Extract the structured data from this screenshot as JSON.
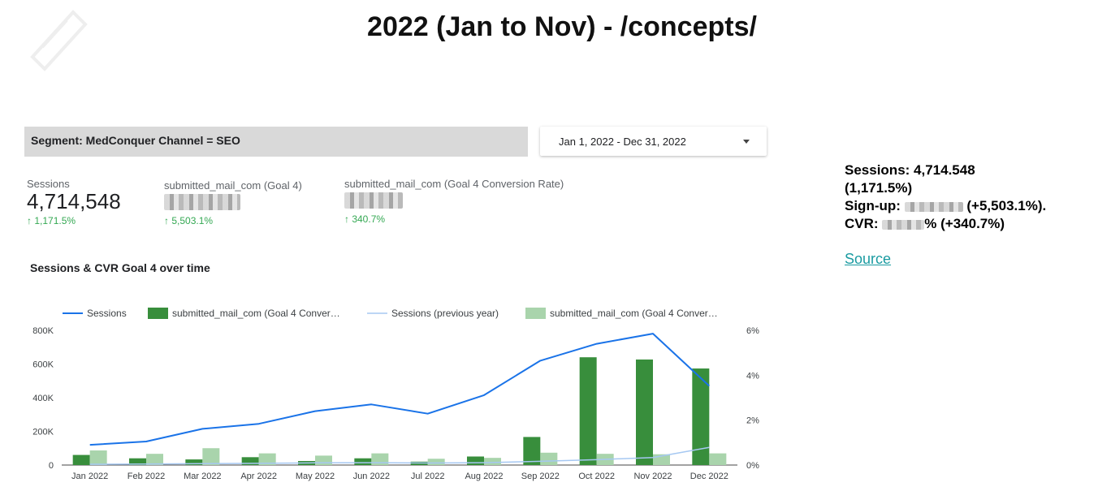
{
  "page_title": "2022 (Jan to Nov) - /concepts/",
  "segment_label": "Segment: MedConquer Channel = SEO",
  "date_range": "Jan 1, 2022 - Dec 31, 2022",
  "kpis": [
    {
      "label": "Sessions",
      "value": "4,714,548",
      "delta": "↑ 1,171.5%"
    },
    {
      "label": "submitted_mail_com (Goal 4)",
      "value": "",
      "delta": "↑ 5,503.1%"
    },
    {
      "label": "submitted_mail_com (Goal 4 Conversion Rate)",
      "value": "",
      "delta": "↑ 340.7%"
    }
  ],
  "side_summary": {
    "sessions_line1": "Sessions: 4,714.548",
    "sessions_line2": "(1,171.5%)",
    "signup_prefix": "Sign-up:",
    "signup_suffix": "(+5,503.1%).",
    "cvr_prefix": "CVR:",
    "cvr_suffix": "% (+340.7%)"
  },
  "source_link": "Source",
  "colors": {
    "sessions": "#1a73e8",
    "goal_conv": "#388e3c",
    "sessions_prev": "#a6c8f2",
    "goal_conv_prev": "#a9d4ac",
    "delta": "#34a853",
    "link": "#1a9ba1"
  },
  "chart_data": {
    "type": "bar",
    "title": "Sessions & CVR Goal 4 over time",
    "categories": [
      "Jan 2022",
      "Feb 2022",
      "Mar 2022",
      "Apr 2022",
      "May 2022",
      "Jun 2022",
      "Jul 2022",
      "Aug 2022",
      "Sep 2022",
      "Oct 2022",
      "Nov 2022",
      "Dec 2022"
    ],
    "legend": [
      "Sessions",
      "submitted_mail_com (Goal 4 Conver…",
      "Sessions (previous year)",
      "submitted_mail_com (Goal 4 Conver…"
    ],
    "legend_position": "top",
    "y_left": {
      "ticks": [
        "0",
        "200K",
        "400K",
        "600K",
        "800K"
      ],
      "lim": [
        0,
        800000
      ]
    },
    "y_right": {
      "ticks": [
        "0%",
        "2%",
        "4%",
        "6%"
      ],
      "lim": [
        0,
        6
      ]
    },
    "series": [
      {
        "name": "Sessions",
        "kind": "line",
        "axis": "left",
        "values": [
          120000,
          140000,
          215000,
          245000,
          320000,
          360000,
          305000,
          415000,
          620000,
          720000,
          780000,
          470000
        ]
      },
      {
        "name": "submitted_mail_com (Goal 4 Conver…",
        "kind": "bar",
        "axis": "right",
        "values": [
          0.45,
          0.3,
          0.25,
          0.35,
          0.18,
          0.3,
          0.15,
          0.38,
          1.25,
          4.8,
          4.7,
          4.3
        ]
      },
      {
        "name": "Sessions (previous year)",
        "kind": "line",
        "axis": "left",
        "values": [
          5000,
          6000,
          8000,
          10000,
          13000,
          14000,
          12000,
          14000,
          22000,
          32000,
          45000,
          105000
        ]
      },
      {
        "name": "submitted_mail_com (Goal 4 Conver…",
        "kind": "bar",
        "axis": "right",
        "values": [
          0.65,
          0.5,
          0.75,
          0.52,
          0.42,
          0.52,
          0.28,
          0.32,
          0.55,
          0.5,
          0.48,
          0.52
        ]
      }
    ]
  }
}
